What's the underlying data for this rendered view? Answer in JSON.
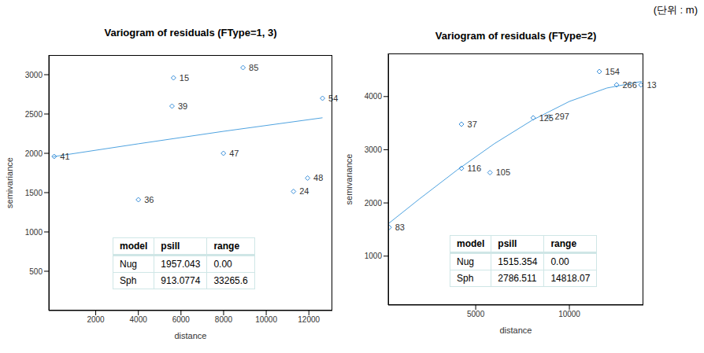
{
  "unit": "(단위 : m)",
  "chart_data": [
    {
      "type": "scatter",
      "title": "Variogram of residuals (FType=1, 3)",
      "x_label": "distance",
      "y_label": "semivariance",
      "xlim": [
        -200,
        13100
      ],
      "xticks": [
        2000,
        4000,
        6000,
        8000,
        10000,
        12000
      ],
      "ylim": [
        0,
        3250
      ],
      "yticks": [
        500,
        1000,
        1500,
        2000,
        2500,
        3000
      ],
      "points": {
        "marker": "diamond",
        "color": "#3a8fd9",
        "x": [
          50,
          4000,
          5580,
          5650,
          7990,
          8910,
          11280,
          11940,
          12640
        ],
        "values": [
          1960,
          1410,
          2600,
          2960,
          2000,
          3090,
          1515,
          1685,
          2700
        ],
        "point_labels": [
          41,
          36,
          39,
          15,
          47,
          85,
          24,
          48,
          54
        ]
      },
      "model_line": {
        "type": "line",
        "color": "#4fa3e0",
        "x": [
          0,
          4000,
          8000,
          12640
        ],
        "values": [
          1957,
          2121,
          2280,
          2452
        ]
      },
      "table": {
        "header": [
          "model",
          "psill",
          "range"
        ],
        "rows": [
          [
            "Nug",
            "1957.043",
            "0.00"
          ],
          [
            "Sph",
            "913.0774",
            "33265.6"
          ]
        ]
      }
    },
    {
      "type": "scatter",
      "title": "Variogram of residuals (FType=2)",
      "x_label": "distance",
      "y_label": "semivariance",
      "xlim": [
        330,
        13950
      ],
      "xticks": [
        5000,
        10000
      ],
      "ylim": [
        80,
        4810
      ],
      "yticks": [
        1000,
        2000,
        3000,
        4000
      ],
      "points": {
        "marker": "diamond",
        "color": "#3a8fd9",
        "x": [
          380,
          4240,
          4240,
          5760,
          8070,
          8910,
          11600,
          12520,
          13820
        ],
        "values": [
          1540,
          3480,
          2650,
          2570,
          3600,
          3620,
          4470,
          4220,
          4220
        ],
        "point_labels": [
          83,
          37,
          116,
          105,
          125,
          297,
          154,
          266,
          13
        ]
      },
      "model_line": {
        "type": "line",
        "color": "#4fa3e0",
        "x": [
          330,
          2000,
          4000,
          6000,
          8000,
          10000,
          12000,
          13870
        ],
        "values": [
          1608,
          2076,
          2616,
          3115,
          3552,
          3908,
          4160,
          4285
        ]
      },
      "table": {
        "header": [
          "model",
          "psill",
          "range"
        ],
        "rows": [
          [
            "Nug",
            "1515.354",
            "0.00"
          ],
          [
            "Sph",
            "2786.511",
            "14818.07"
          ]
        ]
      }
    }
  ]
}
